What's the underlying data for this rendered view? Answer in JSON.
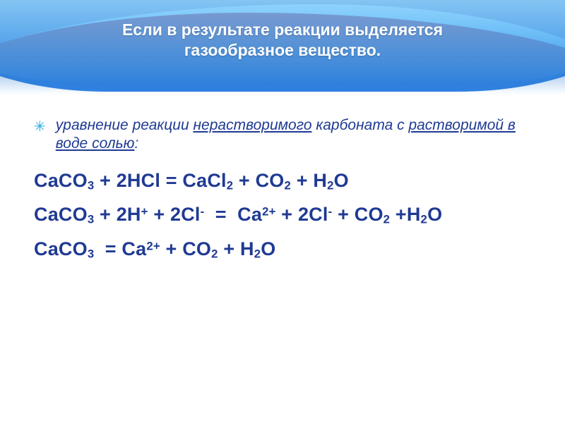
{
  "slide": {
    "background_color": "#ffffff",
    "banner": {
      "gradient_top": "#1fa6f0",
      "gradient_bottom": "#2f7ee0",
      "wave_light": "rgba(255,255,255,0.55)",
      "wave_dark": "rgba(35,80,170,0.85)",
      "wave_mid": "rgba(70,185,255,0.8)"
    },
    "title": {
      "line1": "Если в результате реакции выделяется",
      "line2": "газообразное вещество.",
      "color": "#ffffff",
      "font_size_pt": 17,
      "font_weight": "bold"
    },
    "bullet": {
      "marker": "✳",
      "marker_color": "#2aa9e0",
      "text_color": "#1f3a93",
      "italic": true,
      "font_size_pt": 16,
      "part1": "уравнение реакции ",
      "u1": "нерастворимого",
      "part2": " карбоната с ",
      "u2": "растворимой в воде солью",
      "part3": ":"
    },
    "equations": {
      "text_color": "#1f3a93",
      "font_weight": "bold",
      "font_size_pt": 20,
      "line_height": 1.5,
      "eq1": "CaCO₃ + 2HCl = CaCl₂ + CO₂ + H₂O",
      "eq2": "CaCO₃ + 2H⁺ + 2Cl⁻  =  Ca²⁺ + 2Cl⁻ + CO₂ +H₂O",
      "eq3": "CaCO₃  = Ca²⁺ + CO₂ + H₂O"
    }
  }
}
